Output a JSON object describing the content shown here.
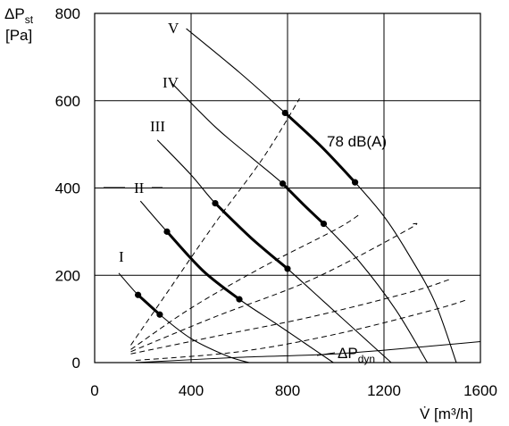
{
  "chart_data": {
    "type": "line",
    "xlabel": "V̇ [m³/h]",
    "ylabel": "ΔPst [Pa]",
    "xlim": [
      0,
      1600
    ],
    "ylim": [
      0,
      800
    ],
    "x_ticks": [
      "0",
      "400",
      "800",
      "1200",
      "1600"
    ],
    "y_ticks": [
      "0",
      "200",
      "400",
      "600",
      "800"
    ],
    "grid": true,
    "series": [
      {
        "name": "I",
        "kind": "fan-curve",
        "x": [
          100,
          180,
          270,
          400,
          550,
          640
        ],
        "y": [
          205,
          155,
          110,
          55,
          15,
          0
        ],
        "bold": [
          [
            180,
            155
          ],
          [
            270,
            110
          ]
        ]
      },
      {
        "name": "II",
        "kind": "fan-curve",
        "x": [
          190,
          300,
          450,
          600,
          750,
          870,
          990
        ],
        "y": [
          370,
          300,
          210,
          145,
          90,
          45,
          0
        ],
        "bold": [
          [
            300,
            300
          ],
          [
            450,
            210
          ],
          [
            600,
            145
          ]
        ]
      },
      {
        "name": "III",
        "kind": "fan-curve",
        "x": [
          260,
          400,
          500,
          650,
          800,
          950,
          1100,
          1230
        ],
        "y": [
          510,
          430,
          365,
          285,
          215,
          140,
          65,
          0
        ],
        "bold": [
          [
            500,
            365
          ],
          [
            650,
            285
          ],
          [
            800,
            215
          ]
        ]
      },
      {
        "name": "IV",
        "kind": "fan-curve",
        "x": [
          320,
          500,
          650,
          780,
          870,
          950,
          1100,
          1250,
          1380
        ],
        "y": [
          640,
          540,
          470,
          410,
          360,
          318,
          230,
          120,
          0
        ],
        "bold": [
          [
            780,
            410
          ],
          [
            870,
            360
          ],
          [
            950,
            318
          ]
        ]
      },
      {
        "name": "V",
        "kind": "fan-curve",
        "x": [
          380,
          600,
          790,
          940,
          1080,
          1200,
          1300,
          1410,
          1500
        ],
        "y": [
          765,
          665,
          572,
          495,
          413,
          335,
          250,
          140,
          0
        ],
        "bold": [
          [
            790,
            572
          ],
          [
            940,
            495
          ],
          [
            1080,
            413
          ]
        ]
      },
      {
        "name": "78 dB(A)",
        "kind": "dashed",
        "x": [
          150,
          300,
          500,
          700,
          850
        ],
        "y": [
          40,
          160,
          320,
          470,
          605
        ]
      },
      {
        "name": "",
        "kind": "dashed",
        "x": [
          150,
          400,
          700,
          1000,
          1100
        ],
        "y": [
          30,
          125,
          220,
          305,
          340
        ]
      },
      {
        "name": "",
        "kind": "dashed",
        "x": [
          150,
          500,
          900,
          1300,
          1320
        ],
        "y": [
          25,
          105,
          190,
          305,
          318
        ]
      },
      {
        "name": "",
        "kind": "dashed",
        "x": [
          150,
          500,
          900,
          1300,
          1470
        ],
        "y": [
          20,
          60,
          105,
          160,
          190
        ]
      },
      {
        "name": "",
        "kind": "dashed",
        "x": [
          170,
          600,
          1000,
          1400,
          1550
        ],
        "y": [
          5,
          25,
          65,
          120,
          145
        ]
      },
      {
        "name": "ΔPdyn",
        "kind": "solid-thin",
        "x": [
          170,
          600,
          1000,
          1400,
          1600
        ],
        "y": [
          0,
          12,
          20,
          38,
          48
        ]
      }
    ],
    "points": [
      {
        "series": "I",
        "x": [
          180,
          270
        ],
        "y": [
          155,
          110
        ]
      },
      {
        "series": "II",
        "x": [
          300,
          600
        ],
        "y": [
          300,
          145
        ]
      },
      {
        "series": "III",
        "x": [
          500,
          800
        ],
        "y": [
          365,
          215
        ]
      },
      {
        "series": "IV",
        "x": [
          780,
          950
        ],
        "y": [
          410,
          318
        ]
      },
      {
        "series": "V",
        "x": [
          790,
          1080
        ],
        "y": [
          572,
          413
        ]
      }
    ],
    "annotations": {
      "curve_labels": [
        "I",
        "II",
        "III",
        "IV",
        "V"
      ],
      "db_label": "78 dB(A)",
      "dyn_label": "ΔP",
      "dyn_sub": "dyn"
    }
  },
  "axis_title": {
    "y_main": "ΔP",
    "y_sub": "st",
    "y_unit": "[Pa]",
    "x_text": "V̇ [m³/h]"
  }
}
